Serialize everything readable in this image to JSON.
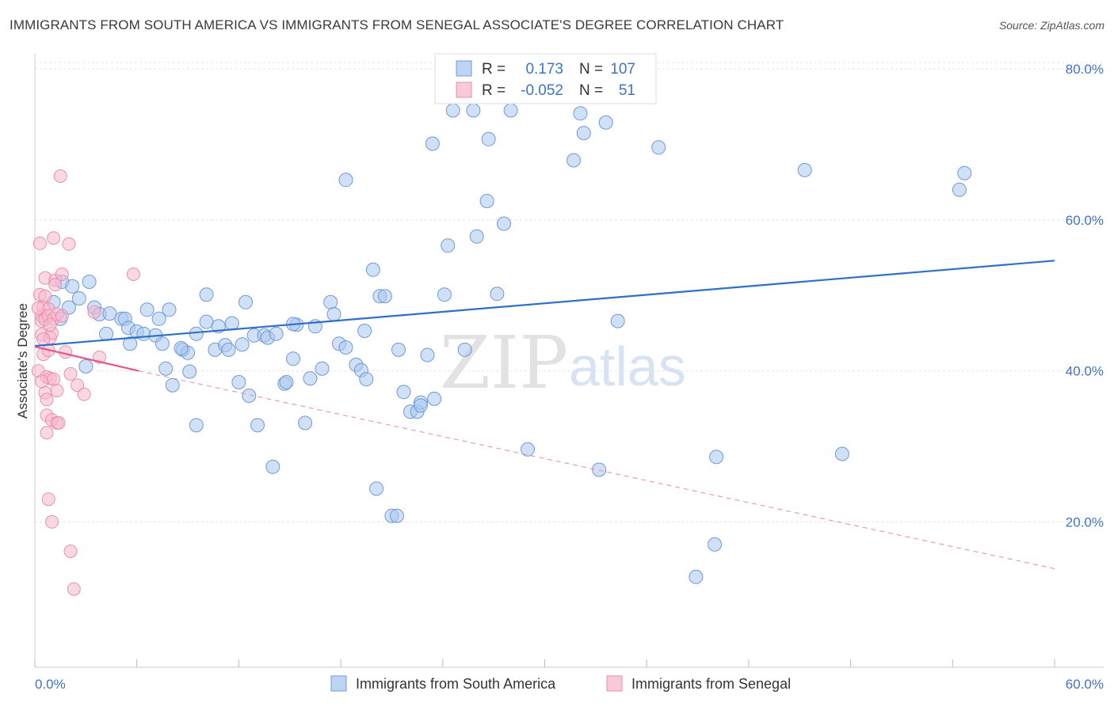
{
  "title": "IMMIGRANTS FROM SOUTH AMERICA VS IMMIGRANTS FROM SENEGAL ASSOCIATE'S DEGREE CORRELATION CHART",
  "source": "Source: ZipAtlas.com",
  "watermark": {
    "zip": "ZIP",
    "atlas": "atlas"
  },
  "legend": {
    "r_label": "R =",
    "n_label": "N =",
    "rows": [
      {
        "r": "0.173",
        "n": "107",
        "color": "#a9c6ee"
      },
      {
        "r": "-0.052",
        "n": "51",
        "color": "#f6b8cc"
      }
    ]
  },
  "chart_data": {
    "type": "scatter",
    "title": "IMMIGRANTS FROM SOUTH AMERICA VS IMMIGRANTS FROM SENEGAL ASSOCIATE'S DEGREE CORRELATION CHART",
    "xlabel": "",
    "ylabel": "Associate's Degree",
    "xlim": [
      0,
      60
    ],
    "ylim": [
      2,
      82
    ],
    "x_tick_labels": [
      "0.0%",
      "60.0%"
    ],
    "y_ticks": [
      20,
      40,
      60,
      80
    ],
    "y_tick_labels": [
      "20.0%",
      "40.0%",
      "60.0%",
      "80.0%"
    ],
    "grid": true,
    "legend_position": "top-center",
    "series": [
      {
        "name": "Immigrants from South America",
        "color": "#a9c6ee",
        "stroke": "#6f9bd8",
        "trend": {
          "x": [
            0,
            60
          ],
          "y": [
            43.3,
            54.6
          ],
          "color": "#2e6fcc",
          "dashed": false
        },
        "points": [
          [
            1.1,
            49.1
          ],
          [
            1.6,
            51.8
          ],
          [
            2.2,
            51.2
          ],
          [
            3.2,
            51.8
          ],
          [
            2.6,
            49.6
          ],
          [
            3.5,
            48.4
          ],
          [
            3.8,
            47.5
          ],
          [
            4.4,
            47.6
          ],
          [
            5.1,
            46.9
          ],
          [
            5.3,
            46.9
          ],
          [
            4.2,
            44.9
          ],
          [
            5.5,
            45.7
          ],
          [
            6.0,
            45.2
          ],
          [
            6.4,
            44.9
          ],
          [
            5.6,
            43.6
          ],
          [
            7.1,
            44.7
          ],
          [
            7.5,
            43.6
          ],
          [
            6.6,
            48.1
          ],
          [
            7.3,
            46.9
          ],
          [
            7.9,
            48.1
          ],
          [
            7.7,
            40.3
          ],
          [
            8.1,
            38.1
          ],
          [
            8.7,
            42.8
          ],
          [
            9.0,
            42.4
          ],
          [
            9.1,
            39.9
          ],
          [
            9.5,
            44.9
          ],
          [
            9.5,
            32.8
          ],
          [
            10.1,
            50.1
          ],
          [
            10.1,
            46.5
          ],
          [
            10.6,
            42.8
          ],
          [
            10.8,
            45.9
          ],
          [
            11.2,
            43.4
          ],
          [
            11.4,
            42.8
          ],
          [
            11.6,
            46.3
          ],
          [
            12.0,
            38.5
          ],
          [
            12.4,
            49.1
          ],
          [
            12.6,
            36.7
          ],
          [
            12.9,
            44.7
          ],
          [
            13.1,
            32.8
          ],
          [
            13.5,
            44.7
          ],
          [
            13.7,
            44.4
          ],
          [
            14.0,
            27.3
          ],
          [
            14.2,
            44.9
          ],
          [
            14.7,
            38.3
          ],
          [
            14.8,
            38.5
          ],
          [
            15.2,
            41.6
          ],
          [
            15.4,
            46.1
          ],
          [
            15.9,
            33.1
          ],
          [
            16.2,
            39.0
          ],
          [
            16.5,
            45.9
          ],
          [
            16.9,
            40.3
          ],
          [
            17.4,
            49.1
          ],
          [
            17.6,
            47.5
          ],
          [
            17.9,
            43.6
          ],
          [
            18.3,
            43.1
          ],
          [
            18.3,
            65.3
          ],
          [
            18.9,
            40.8
          ],
          [
            19.2,
            40.1
          ],
          [
            19.5,
            38.9
          ],
          [
            19.9,
            53.4
          ],
          [
            20.1,
            24.4
          ],
          [
            20.3,
            49.9
          ],
          [
            20.6,
            49.9
          ],
          [
            21.0,
            20.8
          ],
          [
            21.3,
            20.8
          ],
          [
            21.4,
            42.8
          ],
          [
            21.7,
            37.2
          ],
          [
            22.1,
            34.6
          ],
          [
            22.5,
            34.6
          ],
          [
            22.7,
            35.8
          ],
          [
            23.1,
            42.1
          ],
          [
            23.5,
            36.3
          ],
          [
            23.4,
            70.1
          ],
          [
            24.1,
            50.1
          ],
          [
            24.3,
            56.6
          ],
          [
            24.6,
            74.5
          ],
          [
            25.3,
            42.8
          ],
          [
            25.8,
            74.5
          ],
          [
            26.0,
            57.8
          ],
          [
            26.6,
            62.5
          ],
          [
            26.7,
            70.7
          ],
          [
            27.2,
            50.2
          ],
          [
            27.6,
            59.5
          ],
          [
            28.0,
            74.5
          ],
          [
            29.0,
            29.6
          ],
          [
            31.7,
            67.9
          ],
          [
            32.1,
            74.1
          ],
          [
            32.3,
            71.5
          ],
          [
            33.2,
            26.9
          ],
          [
            33.6,
            72.9
          ],
          [
            34.3,
            46.6
          ],
          [
            36.7,
            69.6
          ],
          [
            38.9,
            12.7
          ],
          [
            40.0,
            17.0
          ],
          [
            40.1,
            28.6
          ],
          [
            45.3,
            66.6
          ],
          [
            47.5,
            29.0
          ],
          [
            54.4,
            64.0
          ],
          [
            54.7,
            66.2
          ],
          [
            2.0,
            48.4
          ],
          [
            1.5,
            46.9
          ],
          [
            8.6,
            43.0
          ],
          [
            15.2,
            46.2
          ],
          [
            22.7,
            35.4
          ],
          [
            12.2,
            43.5
          ],
          [
            19.4,
            45.3
          ],
          [
            3.0,
            40.6
          ]
        ]
      },
      {
        "name": "Immigrants from Senegal",
        "color": "#f6b8cc",
        "stroke": "#ea8fae",
        "trend": {
          "x": [
            0,
            6.1
          ],
          "y": [
            43.2,
            40.0
          ],
          "color": "#e2568a",
          "dashed": false
        },
        "trend_extension": {
          "x": [
            6.1,
            60
          ],
          "y": [
            40.0,
            13.8
          ],
          "color": "#e58aa9",
          "dashed": true
        },
        "points": [
          [
            0.2,
            40.0
          ],
          [
            0.3,
            50.1
          ],
          [
            0.4,
            47.3
          ],
          [
            0.4,
            44.8
          ],
          [
            0.4,
            46.6
          ],
          [
            0.5,
            42.2
          ],
          [
            0.5,
            48.5
          ],
          [
            0.6,
            46.8
          ],
          [
            0.6,
            52.3
          ],
          [
            0.6,
            37.1
          ],
          [
            0.7,
            39.2
          ],
          [
            0.7,
            36.2
          ],
          [
            0.7,
            31.8
          ],
          [
            0.7,
            34.1
          ],
          [
            0.8,
            48.2
          ],
          [
            0.8,
            23.0
          ],
          [
            0.8,
            47.3
          ],
          [
            0.9,
            44.4
          ],
          [
            0.9,
            39.0
          ],
          [
            1.0,
            33.5
          ],
          [
            1.0,
            20.0
          ],
          [
            1.0,
            45.0
          ],
          [
            1.1,
            57.6
          ],
          [
            1.1,
            38.9
          ],
          [
            1.1,
            46.9
          ],
          [
            1.2,
            52.0
          ],
          [
            1.3,
            33.1
          ],
          [
            1.3,
            47.5
          ],
          [
            1.3,
            37.4
          ],
          [
            1.4,
            33.1
          ],
          [
            1.5,
            65.8
          ],
          [
            1.6,
            47.3
          ],
          [
            1.6,
            52.8
          ],
          [
            1.8,
            42.5
          ],
          [
            2.0,
            56.8
          ],
          [
            2.1,
            39.6
          ],
          [
            2.1,
            16.1
          ],
          [
            2.3,
            11.1
          ],
          [
            2.5,
            38.1
          ],
          [
            2.9,
            36.9
          ],
          [
            3.5,
            47.8
          ],
          [
            3.8,
            41.8
          ],
          [
            5.8,
            52.8
          ],
          [
            0.3,
            56.9
          ],
          [
            0.2,
            48.3
          ],
          [
            0.5,
            44.2
          ],
          [
            0.6,
            49.9
          ],
          [
            0.4,
            38.6
          ],
          [
            0.9,
            46.1
          ],
          [
            1.2,
            51.4
          ],
          [
            0.8,
            42.7
          ]
        ]
      }
    ]
  }
}
